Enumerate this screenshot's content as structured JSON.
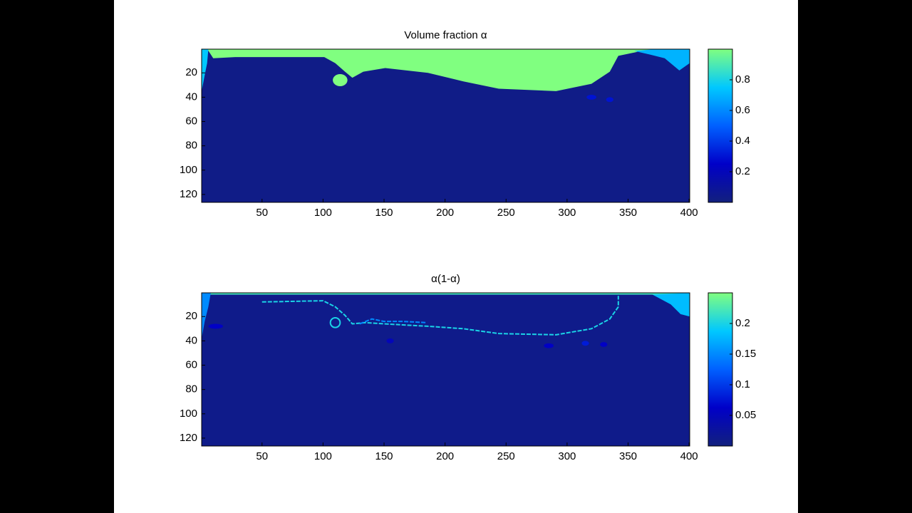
{
  "chart_data": [
    {
      "type": "heatmap",
      "title": "Volume fraction α",
      "xlim": [
        0.5,
        400.5
      ],
      "ylim": [
        0.5,
        126.5
      ],
      "ydir": "reverse",
      "xticks": [
        50,
        100,
        150,
        200,
        250,
        300,
        350,
        400
      ],
      "yticks": [
        20,
        40,
        60,
        80,
        100,
        120
      ],
      "colormap": [
        "#12207e",
        "#0000c8",
        "#0060ff",
        "#00c8ff",
        "#80ff80"
      ],
      "clim": [
        0,
        1
      ],
      "colorbar_ticks": [
        0.2,
        0.4,
        0.6,
        0.8
      ],
      "background": 0.03,
      "regions": [
        {
          "value": 1,
          "points": [
            [
              0.5,
              0.5
            ],
            [
              5.5,
              1
            ],
            [
              10,
              8
            ],
            [
              28,
              7
            ],
            [
              101,
              7
            ],
            [
              110,
              12
            ],
            [
              118,
              19
            ],
            [
              124,
              24
            ],
            [
              133,
              19
            ],
            [
              151,
              16
            ],
            [
              186,
              20
            ],
            [
              215,
              27
            ],
            [
              244,
              33
            ],
            [
              291,
              35
            ],
            [
              320,
              29
            ],
            [
              335,
              19
            ],
            [
              342,
              6
            ],
            [
              361,
              2
            ],
            [
              396,
              2
            ],
            [
              400.5,
              0.5
            ]
          ]
        },
        {
          "value": 0.75,
          "points": [
            [
              0.5,
              0.5
            ],
            [
              6,
              0.5
            ],
            [
              5,
              12
            ],
            [
              3,
              22
            ],
            [
              0.5,
              35
            ]
          ]
        },
        {
          "value": 0.7,
          "points": [
            [
              355,
              2
            ],
            [
              372,
              0.5
            ],
            [
              400.5,
              0.5
            ],
            [
              400.5,
              12
            ],
            [
              392,
              18
            ],
            [
              380,
              8
            ],
            [
              368,
              5
            ]
          ]
        },
        {
          "value": 1,
          "center": [
            114,
            26
          ],
          "radii": [
            6,
            5
          ]
        },
        {
          "value": 0.3,
          "center": [
            320,
            40
          ],
          "radii": [
            4,
            2
          ]
        },
        {
          "value": 0.3,
          "center": [
            335,
            42
          ],
          "radii": [
            3,
            2
          ]
        }
      ],
      "contours": []
    },
    {
      "type": "heatmap",
      "title": "α(1-α)",
      "xlim": [
        0.5,
        400.5
      ],
      "ylim": [
        0.5,
        126.5
      ],
      "ydir": "reverse",
      "xticks": [
        50,
        100,
        150,
        200,
        250,
        300,
        350,
        400
      ],
      "yticks": [
        20,
        40,
        60,
        80,
        100,
        120
      ],
      "colormap": [
        "#12207e",
        "#0000c8",
        "#0060ff",
        "#00c8ff",
        "#80ff80"
      ],
      "clim": [
        0,
        0.25
      ],
      "colorbar_ticks": [
        0.05,
        0.1,
        0.15,
        0.2
      ],
      "background": 0.01,
      "regions": [
        {
          "value": 0.22,
          "points": [
            [
              0.5,
              0.5
            ],
            [
              400.5,
              0.5
            ],
            [
              400.5,
              2
            ],
            [
              0.5,
              2
            ]
          ]
        },
        {
          "value": 0.15,
          "points": [
            [
              0.5,
              0.5
            ],
            [
              8,
              0.5
            ],
            [
              6,
              12
            ],
            [
              3,
              24
            ],
            [
              0.5,
              38
            ]
          ]
        },
        {
          "value": 0.18,
          "points": [
            [
              370,
              2
            ],
            [
              400.5,
              0.5
            ],
            [
              400.5,
              20
            ],
            [
              393,
              18
            ],
            [
              385,
              10
            ]
          ]
        },
        {
          "value": 0.06,
          "center": [
            12,
            28
          ],
          "radii": [
            6,
            2
          ]
        },
        {
          "value": 0.06,
          "center": [
            285,
            44
          ],
          "radii": [
            4,
            2
          ]
        },
        {
          "value": 0.08,
          "center": [
            315,
            42
          ],
          "radii": [
            3,
            2
          ]
        },
        {
          "value": 0.06,
          "center": [
            330,
            43
          ],
          "radii": [
            3,
            2
          ]
        },
        {
          "value": 0.05,
          "center": [
            155,
            40
          ],
          "radii": [
            3,
            2
          ]
        }
      ],
      "contours": [
        {
          "value": 0.2,
          "points": [
            [
              50,
              8
            ],
            [
              100,
              7
            ],
            [
              110,
              12
            ],
            [
              118,
              19
            ],
            [
              124,
              26
            ],
            [
              135,
              25
            ],
            [
              150,
              26
            ],
            [
              186,
              28
            ],
            [
              215,
              30
            ],
            [
              244,
              34
            ],
            [
              291,
              35
            ],
            [
              320,
              30
            ],
            [
              335,
              22
            ],
            [
              342,
              12
            ],
            [
              342,
              3
            ]
          ]
        },
        {
          "value": 0.2,
          "center": [
            110,
            25
          ],
          "radii": [
            4,
            4
          ]
        },
        {
          "value": 0.15,
          "points": [
            [
              130,
              26
            ],
            [
              140,
              22
            ],
            [
              150,
              24
            ],
            [
              165,
              24
            ],
            [
              185,
              25
            ]
          ]
        }
      ]
    }
  ]
}
